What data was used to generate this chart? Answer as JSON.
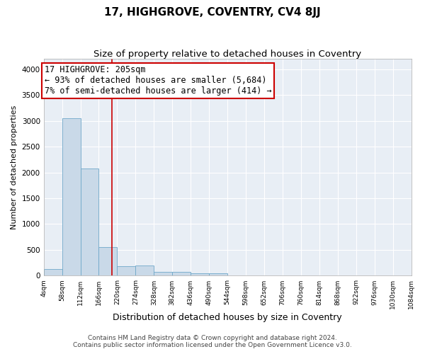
{
  "title": "17, HIGHGROVE, COVENTRY, CV4 8JJ",
  "subtitle": "Size of property relative to detached houses in Coventry",
  "xlabel": "Distribution of detached houses by size in Coventry",
  "ylabel": "Number of detached properties",
  "bin_edges": [
    4,
    58,
    112,
    166,
    220,
    274,
    328,
    382,
    436,
    490,
    544,
    598,
    652,
    706,
    760,
    814,
    868,
    922,
    976,
    1030,
    1084
  ],
  "bar_heights": [
    130,
    3050,
    2080,
    560,
    190,
    200,
    75,
    75,
    50,
    50,
    0,
    0,
    0,
    0,
    0,
    0,
    0,
    0,
    0,
    0
  ],
  "bar_color": "#c9d9e8",
  "bar_edge_color": "#6fa8c9",
  "property_size": 205,
  "property_line_color": "#cc0000",
  "annotation_box_color": "#cc0000",
  "annotation_text": "17 HIGHGROVE: 205sqm\n← 93% of detached houses are smaller (5,684)\n7% of semi-detached houses are larger (414) →",
  "annotation_fontsize": 8.5,
  "ylim": [
    0,
    4200
  ],
  "yticks": [
    0,
    500,
    1000,
    1500,
    2000,
    2500,
    3000,
    3500,
    4000
  ],
  "title_fontsize": 11,
  "subtitle_fontsize": 9.5,
  "xlabel_fontsize": 9,
  "ylabel_fontsize": 8,
  "background_color": "#e8eef5",
  "plot_bg_color": "#e8eef5",
  "footer_line1": "Contains HM Land Registry data © Crown copyright and database right 2024.",
  "footer_line2": "Contains public sector information licensed under the Open Government Licence v3.0.",
  "footer_fontsize": 6.5
}
